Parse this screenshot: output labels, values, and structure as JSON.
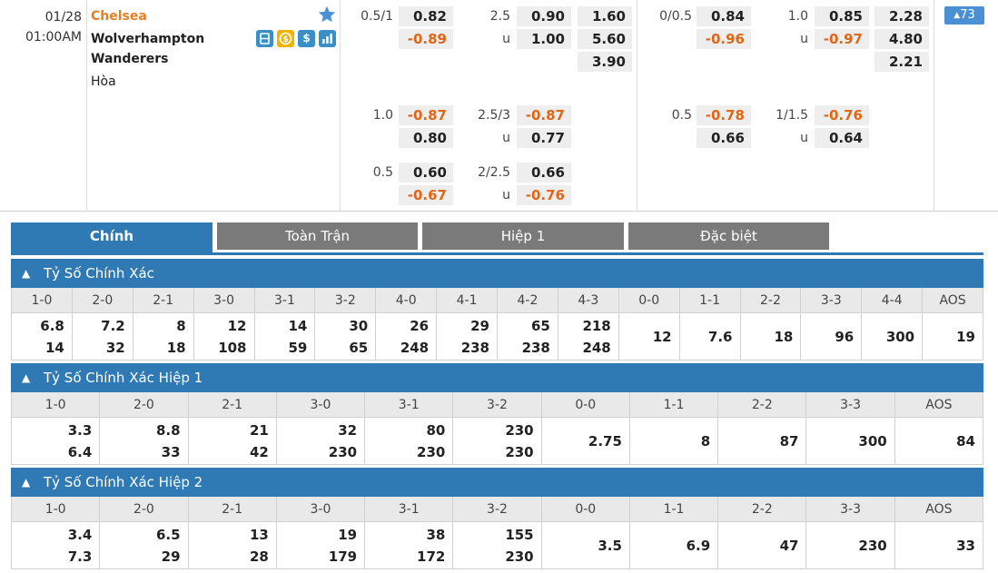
{
  "match": {
    "date": "01/28",
    "time": "01:00AM",
    "home": "Chelsea",
    "away_line1": "Wolverhampton",
    "away_line2": "Wanderers",
    "draw": "Hòa",
    "icon_s": "$",
    "more_count": "73",
    "colors": {
      "home": "#e67e22",
      "accent": "#2f7ab5",
      "negative": "#e06616"
    }
  },
  "odds": {
    "ft": {
      "rows": [
        {
          "hcap": "0.5/1",
          "h_home": "0.82",
          "h_away": "-0.89",
          "ou": "2.5",
          "ou_over": "0.90",
          "ou_under_lbl": "u",
          "ou_under": "1.00",
          "x_home": "1.60",
          "x_away": "5.60",
          "x_draw": "3.90"
        },
        {
          "hcap": "1.0",
          "h_home": "-0.87",
          "h_away": "0.80",
          "ou": "2.5/3",
          "ou_over": "-0.87",
          "ou_under_lbl": "u",
          "ou_under": "0.77"
        },
        {
          "hcap": "0.5",
          "h_home": "0.60",
          "h_away": "-0.67",
          "ou": "2/2.5",
          "ou_over": "0.66",
          "ou_under_lbl": "u",
          "ou_under": "-0.76"
        }
      ]
    },
    "h1": {
      "rows": [
        {
          "hcap": "0/0.5",
          "h_home": "0.84",
          "h_away": "-0.96",
          "ou": "1.0",
          "ou_over": "0.85",
          "ou_under_lbl": "u",
          "ou_under": "-0.97",
          "x_home": "2.28",
          "x_away": "4.80",
          "x_draw": "2.21"
        },
        {
          "hcap": "0.5",
          "h_home": "-0.78",
          "h_away": "0.66",
          "ou": "1/1.5",
          "ou_over": "-0.76",
          "ou_under_lbl": "u",
          "ou_under": "0.64"
        }
      ]
    }
  },
  "tabs": [
    "Chính",
    "Toàn Trận",
    "Hiệp 1",
    "Đặc biệt"
  ],
  "sections": [
    {
      "title": "Tỷ Số Chính Xác",
      "headers": [
        "1-0",
        "2-0",
        "2-1",
        "3-0",
        "3-1",
        "3-2",
        "4-0",
        "4-1",
        "4-2",
        "4-3",
        "0-0",
        "1-1",
        "2-2",
        "3-3",
        "4-4",
        "AOS"
      ],
      "values": [
        [
          "6.8",
          "14"
        ],
        [
          "7.2",
          "32"
        ],
        [
          "8",
          "18"
        ],
        [
          "12",
          "108"
        ],
        [
          "14",
          "59"
        ],
        [
          "30",
          "65"
        ],
        [
          "26",
          "248"
        ],
        [
          "29",
          "238"
        ],
        [
          "65",
          "238"
        ],
        [
          "218",
          "248"
        ],
        [
          "12"
        ],
        [
          "7.6"
        ],
        [
          "18"
        ],
        [
          "96"
        ],
        [
          "300"
        ],
        [
          "19"
        ]
      ]
    },
    {
      "title": "Tỷ Số Chính Xác Hiệp 1",
      "headers": [
        "1-0",
        "2-0",
        "2-1",
        "3-0",
        "3-1",
        "3-2",
        "0-0",
        "1-1",
        "2-2",
        "3-3",
        "AOS"
      ],
      "values": [
        [
          "3.3",
          "6.4"
        ],
        [
          "8.8",
          "33"
        ],
        [
          "21",
          "42"
        ],
        [
          "32",
          "230"
        ],
        [
          "80",
          "230"
        ],
        [
          "230",
          "230"
        ],
        [
          "2.75"
        ],
        [
          "8"
        ],
        [
          "87"
        ],
        [
          "300"
        ],
        [
          "84"
        ]
      ]
    },
    {
      "title": "Tỷ Số Chính Xác Hiệp 2",
      "headers": [
        "1-0",
        "2-0",
        "2-1",
        "3-0",
        "3-1",
        "3-2",
        "0-0",
        "1-1",
        "2-2",
        "3-3",
        "AOS"
      ],
      "values": [
        [
          "3.4",
          "7.3"
        ],
        [
          "6.5",
          "29"
        ],
        [
          "13",
          "28"
        ],
        [
          "19",
          "179"
        ],
        [
          "38",
          "172"
        ],
        [
          "155",
          "230"
        ],
        [
          "3.5"
        ],
        [
          "6.9"
        ],
        [
          "47"
        ],
        [
          "230"
        ],
        [
          "33"
        ]
      ]
    }
  ]
}
